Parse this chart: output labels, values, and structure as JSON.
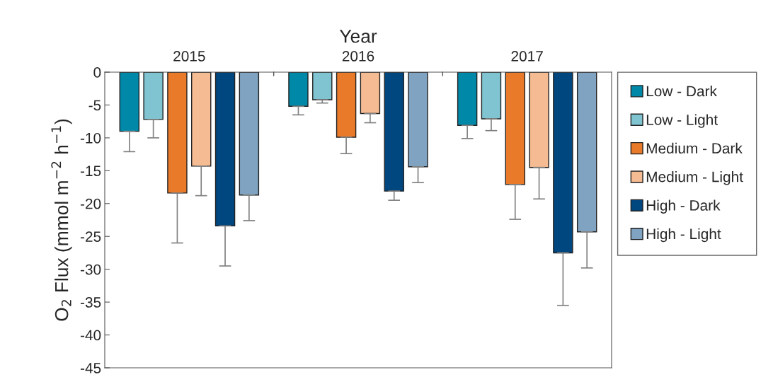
{
  "chart_data": {
    "type": "bar",
    "xlabel": "Year",
    "ylabel": "O$_{2}$ Flux (mmol m$^{−2}$ h$^{−1}$)",
    "categories": [
      "2015",
      "2016",
      "2017"
    ],
    "series": [
      {
        "name": "Low - Dark",
        "color": "#0088a8",
        "values": [
          -9.0,
          -5.2,
          -8.1
        ],
        "errors": [
          [
            -12.1,
            -9.0
          ],
          [
            -6.5,
            -5.2
          ],
          [
            -10.1,
            -8.1
          ]
        ]
      },
      {
        "name": "Low - Light",
        "color": "#80c4d1",
        "values": [
          -7.2,
          -4.2,
          -7.1
        ],
        "errors": [
          [
            -10.0,
            -7.2
          ],
          [
            -4.7,
            -4.2
          ],
          [
            -8.9,
            -7.1
          ]
        ]
      },
      {
        "name": "Medium - Dark",
        "color": "#e97a2a",
        "values": [
          -18.4,
          -9.9,
          -17.1
        ],
        "errors": [
          [
            -26.0,
            -18.4
          ],
          [
            -12.4,
            -9.9
          ],
          [
            -22.4,
            -17.1
          ]
        ]
      },
      {
        "name": "Medium - Light",
        "color": "#f5bb92",
        "values": [
          -14.3,
          -6.3,
          -14.5
        ],
        "errors": [
          [
            -18.8,
            -14.3
          ],
          [
            -7.7,
            -6.3
          ],
          [
            -19.3,
            -14.5
          ]
        ]
      },
      {
        "name": "High - Dark",
        "color": "#00467f",
        "values": [
          -23.4,
          -18.1,
          -27.5
        ],
        "errors": [
          [
            -29.5,
            -23.4
          ],
          [
            -19.5,
            -18.1
          ],
          [
            -35.5,
            -27.5
          ]
        ]
      },
      {
        "name": "High - Light",
        "color": "#7fa3c0",
        "values": [
          -18.7,
          -14.4,
          -24.3
        ],
        "errors": [
          [
            -22.6,
            -18.7
          ],
          [
            -16.8,
            -14.4
          ],
          [
            -29.8,
            -24.3
          ]
        ]
      }
    ],
    "ylim": [
      -45,
      0
    ],
    "yticks": [
      0,
      -5,
      -10,
      -15,
      -20,
      -25,
      -30,
      -35,
      -40,
      -45
    ],
    "grid": false,
    "legend": "right"
  }
}
